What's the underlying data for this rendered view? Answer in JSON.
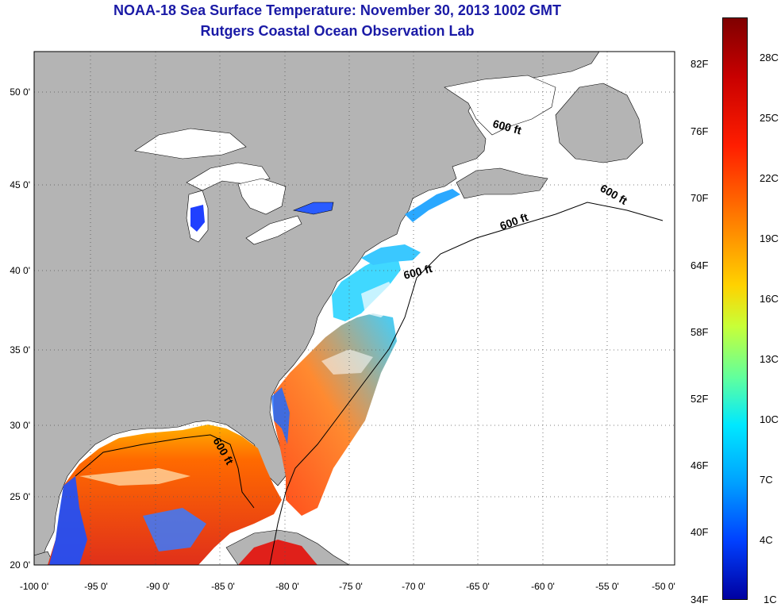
{
  "title": {
    "line1": "NOAA-18 Sea Surface Temperature:  November 30, 2013 1002 GMT",
    "line2": "Rutgers Coastal Ocean Observation Lab"
  },
  "axes": {
    "lat_ticks": [
      "50 0'",
      "45 0'",
      "40 0'",
      "35 0'",
      "30 0'",
      "25 0'",
      "20 0'"
    ],
    "lon_ticks": [
      "-100 0'",
      "-95 0'",
      "-90 0'",
      "-85 0'",
      "-80 0'",
      "-75 0'",
      "-70 0'",
      "-65 0'",
      "-60 0'",
      "-55 0'",
      "-50 0'"
    ]
  },
  "contour_labels": [
    "600 ft",
    "600 ft",
    "600 ft",
    "600 ft",
    "600 ft"
  ],
  "colorbar": {
    "fahrenheit": [
      "82F",
      "76F",
      "70F",
      "64F",
      "58F",
      "52F",
      "46F",
      "40F",
      "34F"
    ],
    "celsius": [
      "28C",
      "25C",
      "22C",
      "19C",
      "16C",
      "13C",
      "10C",
      "7C",
      "4C",
      "1C"
    ]
  },
  "colors": {
    "land": "#b4b4b4",
    "ocean_nodata": "#ffffff",
    "title": "#1a1aa6"
  }
}
